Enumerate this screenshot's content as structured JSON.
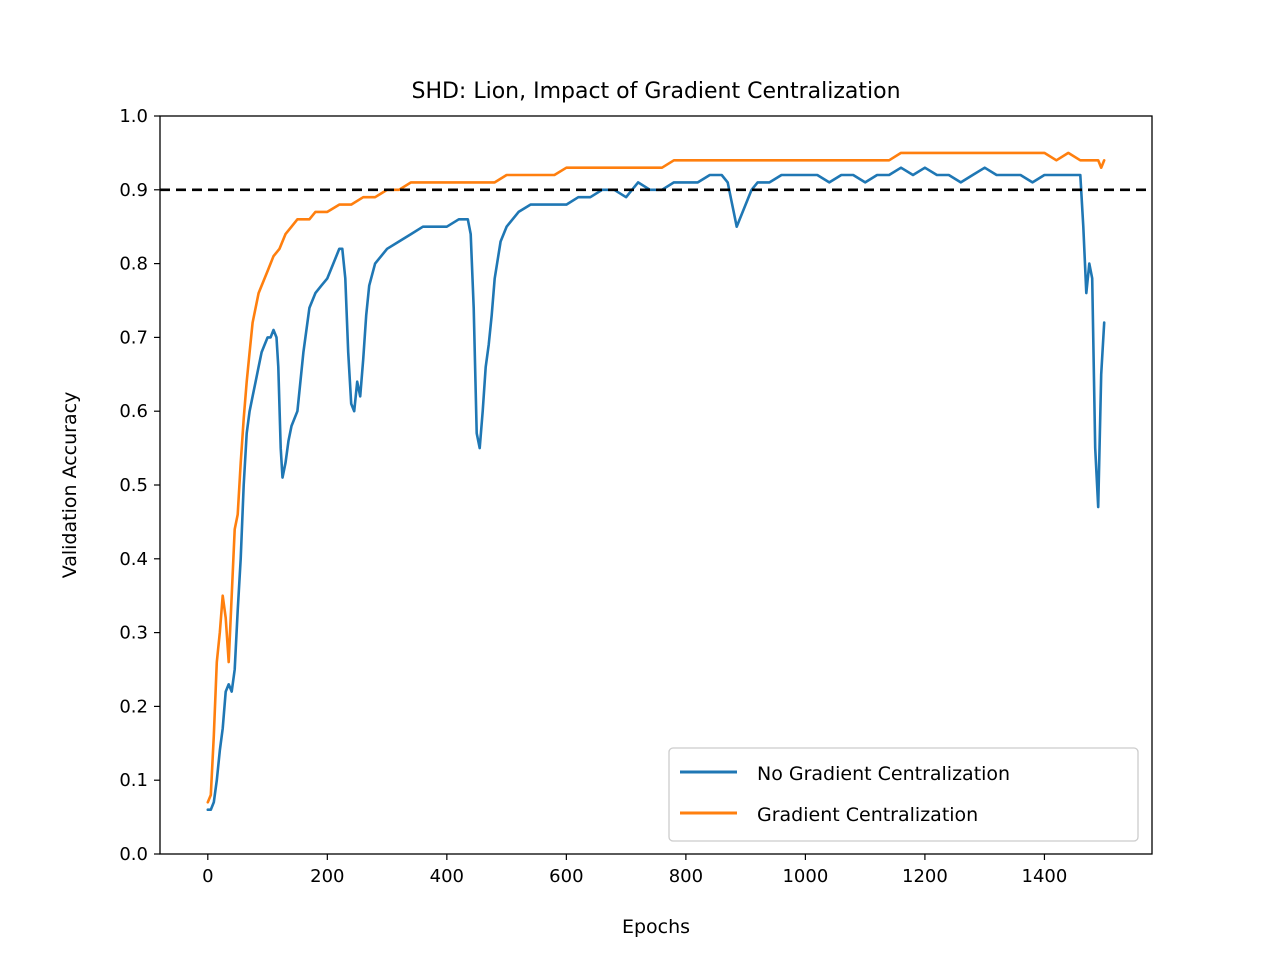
{
  "chart_data": {
    "type": "line",
    "title": "SHD: Lion, Impact of Gradient Centralization",
    "xlabel": "Epochs",
    "ylabel": "Validation Accuracy",
    "xlim": [
      -80,
      1580
    ],
    "ylim": [
      0.0,
      1.0
    ],
    "xticks": [
      0,
      200,
      400,
      600,
      800,
      1000,
      1200,
      1400
    ],
    "yticks": [
      0.0,
      0.1,
      0.2,
      0.3,
      0.4,
      0.5,
      0.6,
      0.7,
      0.8,
      0.9,
      1.0
    ],
    "xtick_labels": [
      "0",
      "200",
      "400",
      "600",
      "800",
      "1000",
      "1200",
      "1400"
    ],
    "ytick_labels": [
      "0.0",
      "0.1",
      "0.2",
      "0.3",
      "0.4",
      "0.5",
      "0.6",
      "0.7",
      "0.8",
      "0.9",
      "1.0"
    ],
    "grid": false,
    "legend_position": "lower-right",
    "reference_line": {
      "y": 0.9,
      "style": "dashed",
      "color": "#000000"
    },
    "series": [
      {
        "name": "No Gradient Centralization",
        "color": "#1f77b4",
        "points": [
          [
            0,
            0.06
          ],
          [
            5,
            0.06
          ],
          [
            10,
            0.07
          ],
          [
            15,
            0.1
          ],
          [
            20,
            0.14
          ],
          [
            25,
            0.17
          ],
          [
            30,
            0.22
          ],
          [
            35,
            0.23
          ],
          [
            40,
            0.22
          ],
          [
            45,
            0.25
          ],
          [
            50,
            0.33
          ],
          [
            55,
            0.4
          ],
          [
            60,
            0.5
          ],
          [
            65,
            0.57
          ],
          [
            70,
            0.6
          ],
          [
            75,
            0.62
          ],
          [
            80,
            0.64
          ],
          [
            85,
            0.66
          ],
          [
            90,
            0.68
          ],
          [
            95,
            0.69
          ],
          [
            100,
            0.7
          ],
          [
            105,
            0.7
          ],
          [
            110,
            0.71
          ],
          [
            115,
            0.7
          ],
          [
            118,
            0.66
          ],
          [
            122,
            0.55
          ],
          [
            125,
            0.51
          ],
          [
            130,
            0.53
          ],
          [
            135,
            0.56
          ],
          [
            140,
            0.58
          ],
          [
            150,
            0.6
          ],
          [
            160,
            0.68
          ],
          [
            170,
            0.74
          ],
          [
            180,
            0.76
          ],
          [
            190,
            0.77
          ],
          [
            200,
            0.78
          ],
          [
            210,
            0.8
          ],
          [
            220,
            0.82
          ],
          [
            225,
            0.82
          ],
          [
            230,
            0.78
          ],
          [
            235,
            0.68
          ],
          [
            240,
            0.61
          ],
          [
            245,
            0.6
          ],
          [
            250,
            0.64
          ],
          [
            255,
            0.62
          ],
          [
            260,
            0.67
          ],
          [
            265,
            0.73
          ],
          [
            270,
            0.77
          ],
          [
            280,
            0.8
          ],
          [
            300,
            0.82
          ],
          [
            320,
            0.83
          ],
          [
            340,
            0.84
          ],
          [
            360,
            0.85
          ],
          [
            380,
            0.85
          ],
          [
            400,
            0.85
          ],
          [
            420,
            0.86
          ],
          [
            435,
            0.86
          ],
          [
            440,
            0.84
          ],
          [
            445,
            0.74
          ],
          [
            450,
            0.57
          ],
          [
            455,
            0.55
          ],
          [
            460,
            0.6
          ],
          [
            465,
            0.66
          ],
          [
            470,
            0.69
          ],
          [
            475,
            0.73
          ],
          [
            480,
            0.78
          ],
          [
            490,
            0.83
          ],
          [
            500,
            0.85
          ],
          [
            520,
            0.87
          ],
          [
            540,
            0.88
          ],
          [
            560,
            0.88
          ],
          [
            580,
            0.88
          ],
          [
            600,
            0.88
          ],
          [
            620,
            0.89
          ],
          [
            640,
            0.89
          ],
          [
            660,
            0.9
          ],
          [
            680,
            0.9
          ],
          [
            700,
            0.89
          ],
          [
            720,
            0.91
          ],
          [
            740,
            0.9
          ],
          [
            760,
            0.9
          ],
          [
            780,
            0.91
          ],
          [
            800,
            0.91
          ],
          [
            820,
            0.91
          ],
          [
            840,
            0.92
          ],
          [
            860,
            0.92
          ],
          [
            870,
            0.91
          ],
          [
            875,
            0.89
          ],
          [
            880,
            0.87
          ],
          [
            885,
            0.85
          ],
          [
            890,
            0.86
          ],
          [
            900,
            0.88
          ],
          [
            910,
            0.9
          ],
          [
            920,
            0.91
          ],
          [
            940,
            0.91
          ],
          [
            960,
            0.92
          ],
          [
            980,
            0.92
          ],
          [
            1000,
            0.92
          ],
          [
            1020,
            0.92
          ],
          [
            1040,
            0.91
          ],
          [
            1060,
            0.92
          ],
          [
            1080,
            0.92
          ],
          [
            1100,
            0.91
          ],
          [
            1120,
            0.92
          ],
          [
            1140,
            0.92
          ],
          [
            1160,
            0.93
          ],
          [
            1180,
            0.92
          ],
          [
            1200,
            0.93
          ],
          [
            1220,
            0.92
          ],
          [
            1240,
            0.92
          ],
          [
            1260,
            0.91
          ],
          [
            1280,
            0.92
          ],
          [
            1300,
            0.93
          ],
          [
            1320,
            0.92
          ],
          [
            1340,
            0.92
          ],
          [
            1360,
            0.92
          ],
          [
            1380,
            0.91
          ],
          [
            1400,
            0.92
          ],
          [
            1420,
            0.92
          ],
          [
            1440,
            0.92
          ],
          [
            1450,
            0.92
          ],
          [
            1460,
            0.92
          ],
          [
            1465,
            0.85
          ],
          [
            1470,
            0.76
          ],
          [
            1475,
            0.8
          ],
          [
            1480,
            0.78
          ],
          [
            1485,
            0.55
          ],
          [
            1490,
            0.47
          ],
          [
            1495,
            0.65
          ],
          [
            1500,
            0.72
          ]
        ]
      },
      {
        "name": "Gradient Centralization",
        "color": "#ff7f0e",
        "points": [
          [
            0,
            0.07
          ],
          [
            5,
            0.08
          ],
          [
            10,
            0.16
          ],
          [
            15,
            0.26
          ],
          [
            20,
            0.3
          ],
          [
            25,
            0.35
          ],
          [
            30,
            0.32
          ],
          [
            35,
            0.26
          ],
          [
            40,
            0.35
          ],
          [
            45,
            0.44
          ],
          [
            50,
            0.46
          ],
          [
            55,
            0.53
          ],
          [
            60,
            0.59
          ],
          [
            65,
            0.64
          ],
          [
            70,
            0.68
          ],
          [
            75,
            0.72
          ],
          [
            80,
            0.74
          ],
          [
            85,
            0.76
          ],
          [
            90,
            0.77
          ],
          [
            95,
            0.78
          ],
          [
            100,
            0.79
          ],
          [
            110,
            0.81
          ],
          [
            120,
            0.82
          ],
          [
            130,
            0.84
          ],
          [
            140,
            0.85
          ],
          [
            150,
            0.86
          ],
          [
            160,
            0.86
          ],
          [
            170,
            0.86
          ],
          [
            180,
            0.87
          ],
          [
            200,
            0.87
          ],
          [
            220,
            0.88
          ],
          [
            240,
            0.88
          ],
          [
            260,
            0.89
          ],
          [
            280,
            0.89
          ],
          [
            300,
            0.9
          ],
          [
            320,
            0.9
          ],
          [
            340,
            0.91
          ],
          [
            360,
            0.91
          ],
          [
            380,
            0.91
          ],
          [
            400,
            0.91
          ],
          [
            420,
            0.91
          ],
          [
            440,
            0.91
          ],
          [
            460,
            0.91
          ],
          [
            480,
            0.91
          ],
          [
            500,
            0.92
          ],
          [
            520,
            0.92
          ],
          [
            540,
            0.92
          ],
          [
            560,
            0.92
          ],
          [
            580,
            0.92
          ],
          [
            600,
            0.93
          ],
          [
            620,
            0.93
          ],
          [
            640,
            0.93
          ],
          [
            660,
            0.93
          ],
          [
            680,
            0.93
          ],
          [
            700,
            0.93
          ],
          [
            720,
            0.93
          ],
          [
            740,
            0.93
          ],
          [
            760,
            0.93
          ],
          [
            780,
            0.94
          ],
          [
            800,
            0.94
          ],
          [
            820,
            0.94
          ],
          [
            840,
            0.94
          ],
          [
            860,
            0.94
          ],
          [
            880,
            0.94
          ],
          [
            900,
            0.94
          ],
          [
            920,
            0.94
          ],
          [
            940,
            0.94
          ],
          [
            960,
            0.94
          ],
          [
            980,
            0.94
          ],
          [
            1000,
            0.94
          ],
          [
            1020,
            0.94
          ],
          [
            1040,
            0.94
          ],
          [
            1060,
            0.94
          ],
          [
            1080,
            0.94
          ],
          [
            1100,
            0.94
          ],
          [
            1120,
            0.94
          ],
          [
            1140,
            0.94
          ],
          [
            1160,
            0.95
          ],
          [
            1180,
            0.95
          ],
          [
            1200,
            0.95
          ],
          [
            1220,
            0.95
          ],
          [
            1240,
            0.95
          ],
          [
            1260,
            0.95
          ],
          [
            1280,
            0.95
          ],
          [
            1300,
            0.95
          ],
          [
            1320,
            0.95
          ],
          [
            1340,
            0.95
          ],
          [
            1360,
            0.95
          ],
          [
            1380,
            0.95
          ],
          [
            1400,
            0.95
          ],
          [
            1420,
            0.94
          ],
          [
            1440,
            0.95
          ],
          [
            1460,
            0.94
          ],
          [
            1480,
            0.94
          ],
          [
            1490,
            0.94
          ],
          [
            1495,
            0.93
          ],
          [
            1500,
            0.94
          ]
        ]
      }
    ]
  }
}
